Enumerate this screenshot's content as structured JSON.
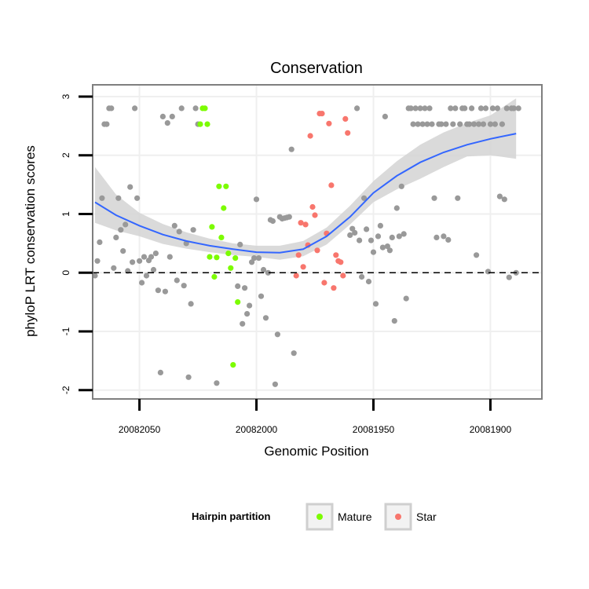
{
  "chart_data": {
    "type": "scatter",
    "title": "Conservation",
    "xlabel": "Genomic Position",
    "ylabel": "phyloP LRT conservation scores",
    "xlim": [
      20082070,
      20081878
    ],
    "ylim": [
      -2.15,
      3.2
    ],
    "x_reversed": true,
    "x_ticks": [
      20082050,
      20082000,
      20081950,
      20081900
    ],
    "x_tick_labels": [
      "20082050",
      "20082000",
      "20081950",
      "20081900"
    ],
    "y_ticks": [
      -2,
      -1,
      0,
      1,
      2,
      3
    ],
    "y_tick_labels": [
      "-2",
      "-1",
      "0",
      "1",
      "2",
      "3"
    ],
    "reference_line": {
      "y": 0,
      "style": "dashed"
    },
    "legend": {
      "title": "Hairpin partition",
      "position": "bottom",
      "entries": [
        "Mature",
        "Star"
      ]
    },
    "colors": {
      "other": "#999999",
      "Mature": "#7cfc00",
      "Star": "#f8766d",
      "smooth": "#3366ff",
      "ribbon": "#d3d3d3"
    },
    "series": [
      {
        "name": "Other",
        "color": "#999999",
        "points": [
          [
            20082069,
            -0.05
          ],
          [
            20082068,
            0.2
          ],
          [
            20082067,
            0.52
          ],
          [
            20082066,
            1.27
          ],
          [
            20082065,
            2.53
          ],
          [
            20082064,
            2.53
          ],
          [
            20082063,
            2.8
          ],
          [
            20082062,
            2.8
          ],
          [
            20082061,
            0.08
          ],
          [
            20082060,
            0.6
          ],
          [
            20082059,
            1.27
          ],
          [
            20082058,
            0.73
          ],
          [
            20082057,
            0.37
          ],
          [
            20082056,
            0.82
          ],
          [
            20082055,
            0.03
          ],
          [
            20082054,
            1.46
          ],
          [
            20082053,
            0.18
          ],
          [
            20082052,
            2.8
          ],
          [
            20082051,
            1.27
          ],
          [
            20082050,
            0.2
          ],
          [
            20082049,
            -0.17
          ],
          [
            20082048,
            0.27
          ],
          [
            20082047,
            -0.05
          ],
          [
            20082046,
            0.21
          ],
          [
            20082045,
            0.27
          ],
          [
            20082044,
            0.05
          ],
          [
            20082043,
            0.33
          ],
          [
            20082042,
            -0.3
          ],
          [
            20082041,
            -1.7
          ],
          [
            20082040,
            2.66
          ],
          [
            20082039,
            -0.32
          ],
          [
            20082038,
            2.55
          ],
          [
            20082037,
            0.27
          ],
          [
            20082036,
            2.66
          ],
          [
            20082035,
            0.8
          ],
          [
            20082034,
            -0.13
          ],
          [
            20082033,
            0.7
          ],
          [
            20082032,
            2.8
          ],
          [
            20082031,
            -0.22
          ],
          [
            20082030,
            0.5
          ],
          [
            20082029,
            -1.78
          ],
          [
            20082028,
            -0.53
          ],
          [
            20082027,
            0.73
          ],
          [
            20082026,
            2.8
          ],
          [
            20082025,
            2.53
          ],
          [
            20082017,
            -1.88
          ],
          [
            20082008,
            -0.23
          ],
          [
            20082007,
            0.48
          ],
          [
            20082006,
            -0.87
          ],
          [
            20082005,
            -0.26
          ],
          [
            20082004,
            -0.7
          ],
          [
            20082003,
            -0.56
          ],
          [
            20082002,
            0.18
          ],
          [
            20082001,
            0.25
          ],
          [
            20082000,
            1.25
          ],
          [
            20081999,
            0.25
          ],
          [
            20081998,
            -0.4
          ],
          [
            20081997,
            0.05
          ],
          [
            20081996,
            -0.77
          ],
          [
            20081995,
            0.0
          ],
          [
            20081994,
            0.9
          ],
          [
            20081993,
            0.88
          ],
          [
            20081992,
            -1.9
          ],
          [
            20081991,
            -1.05
          ],
          [
            20081990,
            0.95
          ],
          [
            20081989,
            0.92
          ],
          [
            20081988,
            0.93
          ],
          [
            20081987,
            0.94
          ],
          [
            20081986,
            0.95
          ],
          [
            20081985,
            2.1
          ],
          [
            20081984,
            -1.37
          ],
          [
            20081960,
            0.64
          ],
          [
            20081959,
            0.75
          ],
          [
            20081958,
            0.68
          ],
          [
            20081957,
            2.8
          ],
          [
            20081956,
            0.55
          ],
          [
            20081955,
            -0.07
          ],
          [
            20081954,
            1.27
          ],
          [
            20081953,
            0.74
          ],
          [
            20081952,
            -0.15
          ],
          [
            20081951,
            0.55
          ],
          [
            20081950,
            0.35
          ],
          [
            20081949,
            -0.53
          ],
          [
            20081948,
            0.62
          ],
          [
            20081947,
            0.8
          ],
          [
            20081946,
            0.43
          ],
          [
            20081945,
            2.66
          ],
          [
            20081944,
            0.45
          ],
          [
            20081943,
            0.38
          ],
          [
            20081942,
            0.6
          ],
          [
            20081941,
            -0.82
          ],
          [
            20081940,
            1.1
          ],
          [
            20081939,
            0.62
          ],
          [
            20081938,
            1.47
          ],
          [
            20081937,
            0.66
          ],
          [
            20081936,
            -0.44
          ],
          [
            20081935,
            2.8
          ],
          [
            20081934,
            2.8
          ],
          [
            20081933,
            2.53
          ],
          [
            20081932,
            2.8
          ],
          [
            20081931,
            2.53
          ],
          [
            20081930,
            2.8
          ],
          [
            20081929,
            2.53
          ],
          [
            20081928,
            2.8
          ],
          [
            20081927,
            2.53
          ],
          [
            20081926,
            2.8
          ],
          [
            20081925,
            2.53
          ],
          [
            20081924,
            1.27
          ],
          [
            20081923,
            0.6
          ],
          [
            20081922,
            2.53
          ],
          [
            20081921,
            2.53
          ],
          [
            20081920,
            0.62
          ],
          [
            20081919,
            2.53
          ],
          [
            20081918,
            0.56
          ],
          [
            20081917,
            2.8
          ],
          [
            20081916,
            2.53
          ],
          [
            20081915,
            2.8
          ],
          [
            20081914,
            1.27
          ],
          [
            20081913,
            2.53
          ],
          [
            20081912,
            2.8
          ],
          [
            20081911,
            2.8
          ],
          [
            20081910,
            2.53
          ],
          [
            20081909,
            2.53
          ],
          [
            20081908,
            2.8
          ],
          [
            20081907,
            2.53
          ],
          [
            20081906,
            0.3
          ],
          [
            20081905,
            2.53
          ],
          [
            20081904,
            2.8
          ],
          [
            20081903,
            2.53
          ],
          [
            20081902,
            2.8
          ],
          [
            20081901,
            0.02
          ],
          [
            20081900,
            2.53
          ],
          [
            20081899,
            2.8
          ],
          [
            20081898,
            2.53
          ],
          [
            20081897,
            2.8
          ],
          [
            20081896,
            1.3
          ],
          [
            20081895,
            2.53
          ],
          [
            20081894,
            1.25
          ],
          [
            20081893,
            2.8
          ],
          [
            20081892,
            -0.08
          ],
          [
            20081891,
            2.8
          ],
          [
            20081890,
            2.8
          ],
          [
            20081889,
            0.0
          ],
          [
            20081888,
            2.8
          ]
        ]
      },
      {
        "name": "Mature",
        "color": "#7cfc00",
        "points": [
          [
            20082024,
            2.53
          ],
          [
            20082023,
            2.8
          ],
          [
            20082022,
            2.8
          ],
          [
            20082021,
            2.53
          ],
          [
            20082020,
            0.27
          ],
          [
            20082019,
            0.78
          ],
          [
            20082018,
            -0.07
          ],
          [
            20082017,
            0.26
          ],
          [
            20082016,
            1.47
          ],
          [
            20082015,
            0.6
          ],
          [
            20082014,
            1.1
          ],
          [
            20082013,
            1.47
          ],
          [
            20082012,
            0.33
          ],
          [
            20082011,
            0.08
          ],
          [
            20082010,
            -1.57
          ],
          [
            20082009,
            0.25
          ],
          [
            20082008,
            -0.5
          ]
        ]
      },
      {
        "name": "Star",
        "color": "#f8766d",
        "points": [
          [
            20081983,
            -0.05
          ],
          [
            20081982,
            0.3
          ],
          [
            20081981,
            0.85
          ],
          [
            20081980,
            0.1
          ],
          [
            20081979,
            0.82
          ],
          [
            20081978,
            0.47
          ],
          [
            20081977,
            2.33
          ],
          [
            20081976,
            1.12
          ],
          [
            20081975,
            0.98
          ],
          [
            20081974,
            0.38
          ],
          [
            20081973,
            2.71
          ],
          [
            20081972,
            2.71
          ],
          [
            20081971,
            -0.17
          ],
          [
            20081970,
            0.67
          ],
          [
            20081969,
            2.54
          ],
          [
            20081968,
            1.49
          ],
          [
            20081967,
            -0.26
          ],
          [
            20081966,
            0.3
          ],
          [
            20081965,
            0.2
          ],
          [
            20081964,
            0.18
          ],
          [
            20081963,
            -0.05
          ],
          [
            20081962,
            2.62
          ],
          [
            20081961,
            2.38
          ]
        ]
      }
    ],
    "smooth": {
      "x": [
        20082069,
        20082060,
        20082050,
        20082040,
        20082030,
        20082020,
        20082010,
        20082000,
        20081990,
        20081980,
        20081970,
        20081960,
        20081950,
        20081940,
        20081930,
        20081920,
        20081910,
        20081900,
        20081889
      ],
      "y": [
        1.2,
        0.98,
        0.8,
        0.65,
        0.54,
        0.46,
        0.4,
        0.35,
        0.34,
        0.4,
        0.62,
        0.95,
        1.36,
        1.65,
        1.88,
        2.05,
        2.18,
        2.28,
        2.37
      ],
      "lower": [
        0.85,
        0.72,
        0.62,
        0.49,
        0.41,
        0.35,
        0.3,
        0.27,
        0.22,
        0.28,
        0.48,
        0.82,
        1.2,
        1.42,
        1.6,
        1.8,
        1.98,
        2.0,
        1.94
      ],
      "upper": [
        1.8,
        1.33,
        1.02,
        0.83,
        0.69,
        0.58,
        0.5,
        0.46,
        0.46,
        0.54,
        0.77,
        1.14,
        1.56,
        1.9,
        2.18,
        2.39,
        2.55,
        2.68,
        2.97
      ]
    }
  }
}
